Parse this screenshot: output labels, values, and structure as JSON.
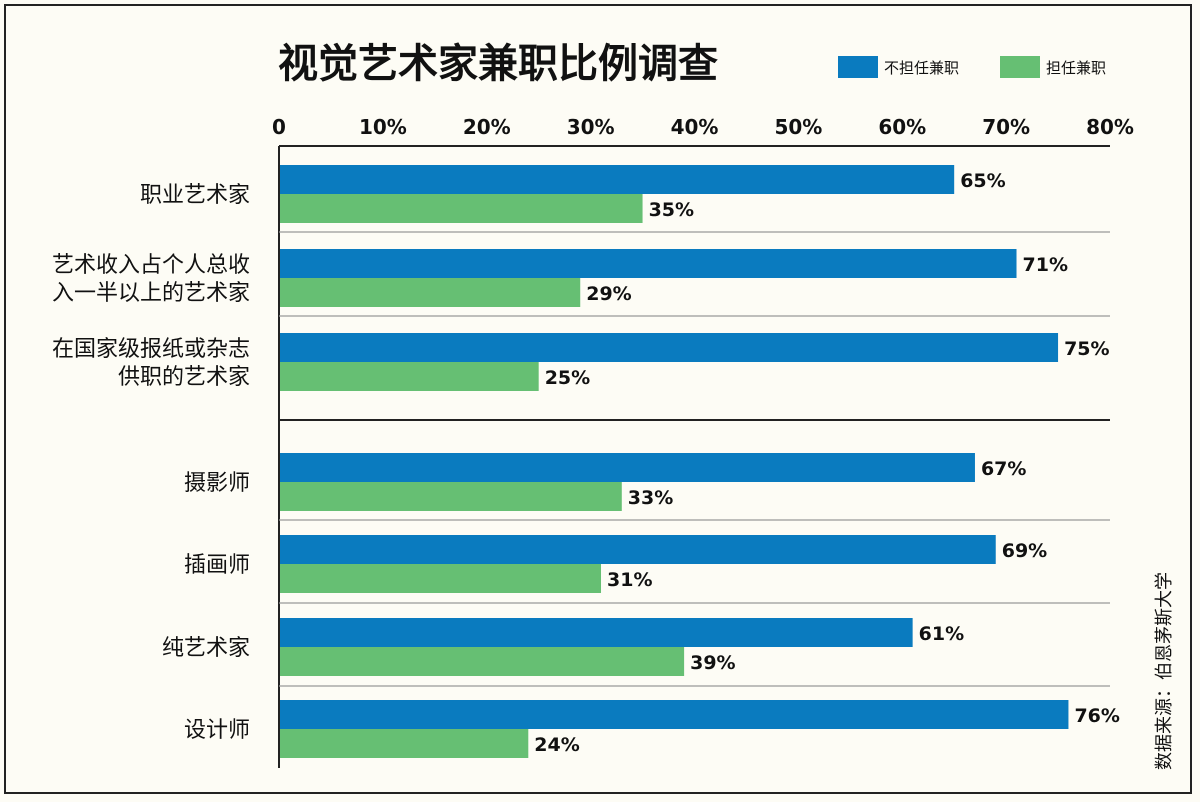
{
  "chart_data": {
    "type": "bar",
    "orientation": "horizontal",
    "title": "视觉艺术家兼职比例调查",
    "source": "数据来源：伯恩茅斯大学",
    "xlim": [
      0,
      80
    ],
    "x_ticks": [
      "0",
      "10%",
      "20%",
      "30%",
      "40%",
      "50%",
      "60%",
      "70%",
      "80%"
    ],
    "categories": [
      [
        "职业艺术家"
      ],
      [
        "艺术收入占个人总收",
        "入一半以上的艺术家"
      ],
      [
        "在国家级报纸或杂志",
        "供职的艺术家"
      ],
      [
        "摄影师"
      ],
      [
        "插画师"
      ],
      [
        "纯艺术家"
      ],
      [
        "设计师"
      ]
    ],
    "series": [
      {
        "name": "不担任兼职",
        "color": "#0a7bbf",
        "values": [
          65,
          71,
          75,
          67,
          69,
          61,
          76
        ],
        "labels": [
          "65%",
          "71%",
          "75%",
          "67%",
          "69%",
          "61%",
          "76%"
        ]
      },
      {
        "name": "担任兼职",
        "color": "#66bf73",
        "values": [
          35,
          29,
          25,
          33,
          31,
          39,
          24
        ],
        "labels": [
          "35%",
          "29%",
          "25%",
          "33%",
          "31%",
          "39%",
          "24%"
        ]
      }
    ],
    "legend_position": "top-right",
    "grid": false
  }
}
